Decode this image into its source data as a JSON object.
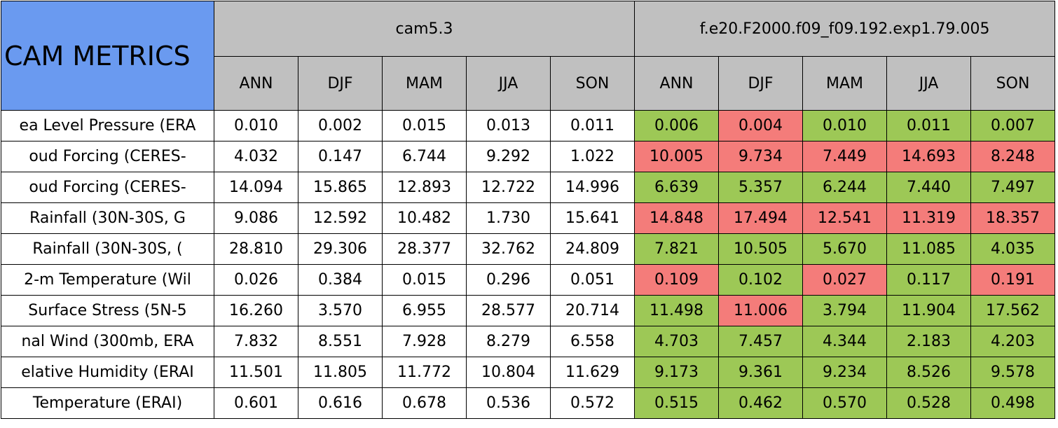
{
  "header": {
    "title": "CAM METRICS",
    "groups": [
      "cam5.3",
      "f.e20.F2000.f09_f09.192.exp1.79.005"
    ],
    "seasons": [
      "ANN",
      "DJF",
      "MAM",
      "JJA",
      "SON"
    ]
  },
  "rows": [
    {
      "label": "ea Level Pressure (ERA",
      "values": [
        "0.010",
        "0.002",
        "0.015",
        "0.013",
        "0.011",
        "0.006",
        "0.004",
        "0.010",
        "0.011",
        "0.007"
      ],
      "colors": [
        "#9dc856",
        "#f47c7a",
        "#9dc856",
        "#9dc856",
        "#9dc856"
      ]
    },
    {
      "label": "oud Forcing (CERES-",
      "values": [
        "4.032",
        "0.147",
        "6.744",
        "9.292",
        "1.022",
        "10.005",
        "9.734",
        "7.449",
        "14.693",
        "8.248"
      ],
      "colors": [
        "#f47c7a",
        "#f47c7a",
        "#f47c7a",
        "#f47c7a",
        "#f47c7a"
      ]
    },
    {
      "label": "oud Forcing (CERES-",
      "values": [
        "14.094",
        "15.865",
        "12.893",
        "12.722",
        "14.996",
        "6.639",
        "5.357",
        "6.244",
        "7.440",
        "7.497"
      ],
      "colors": [
        "#9dc856",
        "#9dc856",
        "#9dc856",
        "#9dc856",
        "#9dc856"
      ]
    },
    {
      "label": "Rainfall (30N-30S, G",
      "values": [
        "9.086",
        "12.592",
        "10.482",
        "1.730",
        "15.641",
        "14.848",
        "17.494",
        "12.541",
        "11.319",
        "18.357"
      ],
      "colors": [
        "#f47c7a",
        "#f47c7a",
        "#f47c7a",
        "#f47c7a",
        "#f47c7a"
      ]
    },
    {
      "label": "Rainfall (30N-30S, (",
      "values": [
        "28.810",
        "29.306",
        "28.377",
        "32.762",
        "24.809",
        "7.821",
        "10.505",
        "5.670",
        "11.085",
        "4.035"
      ],
      "colors": [
        "#9dc856",
        "#9dc856",
        "#9dc856",
        "#9dc856",
        "#9dc856"
      ]
    },
    {
      "label": "2-m Temperature (Wil",
      "values": [
        "0.026",
        "0.384",
        "0.015",
        "0.296",
        "0.051",
        "0.109",
        "0.102",
        "0.027",
        "0.117",
        "0.191"
      ],
      "colors": [
        "#f47c7a",
        "#9dc856",
        "#f47c7a",
        "#9dc856",
        "#f47c7a"
      ]
    },
    {
      "label": "Surface Stress (5N-5",
      "values": [
        "16.260",
        "3.570",
        "6.955",
        "28.577",
        "20.714",
        "11.498",
        "11.006",
        "3.794",
        "11.904",
        "17.562"
      ],
      "colors": [
        "#9dc856",
        "#f47c7a",
        "#9dc856",
        "#9dc856",
        "#9dc856"
      ]
    },
    {
      "label": "nal Wind (300mb, ERA",
      "values": [
        "7.832",
        "8.551",
        "7.928",
        "8.279",
        "6.558",
        "4.703",
        "7.457",
        "4.344",
        "2.183",
        "4.203"
      ],
      "colors": [
        "#9dc856",
        "#9dc856",
        "#9dc856",
        "#9dc856",
        "#9dc856"
      ]
    },
    {
      "label": "elative Humidity (ERAI",
      "values": [
        "11.501",
        "11.805",
        "11.772",
        "10.804",
        "11.629",
        "9.173",
        "9.361",
        "9.234",
        "8.526",
        "9.578"
      ],
      "colors": [
        "#9dc856",
        "#9dc856",
        "#9dc856",
        "#9dc856",
        "#9dc856"
      ]
    },
    {
      "label": "Temperature (ERAI)",
      "values": [
        "0.601",
        "0.616",
        "0.678",
        "0.536",
        "0.572",
        "0.515",
        "0.462",
        "0.570",
        "0.528",
        "0.498"
      ],
      "colors": [
        "#9dc856",
        "#9dc856",
        "#9dc856",
        "#9dc856",
        "#9dc856"
      ]
    }
  ]
}
